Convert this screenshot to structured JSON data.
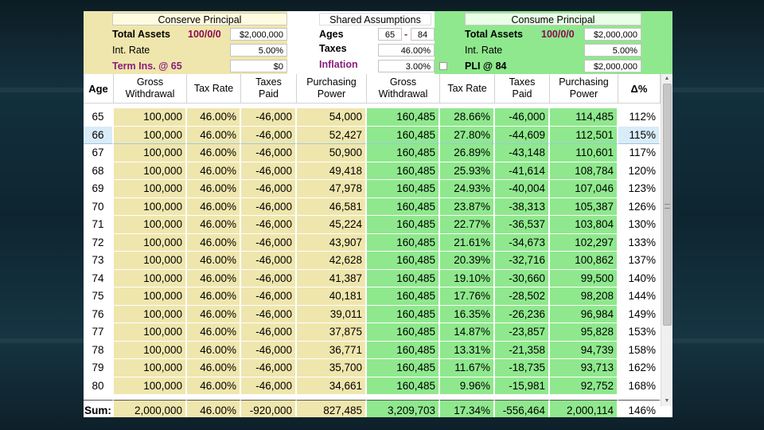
{
  "conserve": {
    "title": "Conserve Principal",
    "total_assets_label": "Total Assets",
    "alloc": "100/0/0",
    "total_assets": "$2,000,000",
    "int_rate_label": "Int. Rate",
    "int_rate": "5.00%",
    "term_ins_label": "Term Ins. @ 65",
    "term_ins": "$0"
  },
  "shared": {
    "title": "Shared Assumptions",
    "ages_label": "Ages",
    "age_from": "65",
    "age_dash": "-",
    "age_to": "84",
    "taxes_label": "Taxes",
    "taxes": "46.00%",
    "inflation_label": "Inflation",
    "inflation": "3.00%"
  },
  "consume": {
    "title": "Consume Principal",
    "total_assets_label": "Total Assets",
    "alloc": "100/0/0",
    "total_assets": "$2,000,000",
    "int_rate_label": "Int. Rate",
    "int_rate": "5.00%",
    "pli_label": "PLI @ 84",
    "pli": "$2,000,000"
  },
  "table": {
    "headers": {
      "age": "Age",
      "gross1": "Gross",
      "gross2": "Withdrawal",
      "tax": "Tax Rate",
      "taxes1": "Taxes",
      "taxes2": "Paid",
      "pp1": "Purchasing",
      "pp2": "Power",
      "delta": "Δ%"
    },
    "rows": [
      {
        "age": "65",
        "cg": "100,000",
        "ct": "46.00%",
        "cp": "-46,000",
        "cpp": "54,000",
        "sg": "160,485",
        "st": "28.66%",
        "sp": "-46,000",
        "spp": "114,485",
        "d": "112%"
      },
      {
        "age": "66",
        "cg": "100,000",
        "ct": "46.00%",
        "cp": "-46,000",
        "cpp": "52,427",
        "sg": "160,485",
        "st": "27.80%",
        "sp": "-44,609",
        "spp": "112,501",
        "d": "115%"
      },
      {
        "age": "67",
        "cg": "100,000",
        "ct": "46.00%",
        "cp": "-46,000",
        "cpp": "50,900",
        "sg": "160,485",
        "st": "26.89%",
        "sp": "-43,148",
        "spp": "110,601",
        "d": "117%"
      },
      {
        "age": "68",
        "cg": "100,000",
        "ct": "46.00%",
        "cp": "-46,000",
        "cpp": "49,418",
        "sg": "160,485",
        "st": "25.93%",
        "sp": "-41,614",
        "spp": "108,784",
        "d": "120%"
      },
      {
        "age": "69",
        "cg": "100,000",
        "ct": "46.00%",
        "cp": "-46,000",
        "cpp": "47,978",
        "sg": "160,485",
        "st": "24.93%",
        "sp": "-40,004",
        "spp": "107,046",
        "d": "123%"
      },
      {
        "age": "70",
        "cg": "100,000",
        "ct": "46.00%",
        "cp": "-46,000",
        "cpp": "46,581",
        "sg": "160,485",
        "st": "23.87%",
        "sp": "-38,313",
        "spp": "105,387",
        "d": "126%"
      },
      {
        "age": "71",
        "cg": "100,000",
        "ct": "46.00%",
        "cp": "-46,000",
        "cpp": "45,224",
        "sg": "160,485",
        "st": "22.77%",
        "sp": "-36,537",
        "spp": "103,804",
        "d": "130%"
      },
      {
        "age": "72",
        "cg": "100,000",
        "ct": "46.00%",
        "cp": "-46,000",
        "cpp": "43,907",
        "sg": "160,485",
        "st": "21.61%",
        "sp": "-34,673",
        "spp": "102,297",
        "d": "133%"
      },
      {
        "age": "73",
        "cg": "100,000",
        "ct": "46.00%",
        "cp": "-46,000",
        "cpp": "42,628",
        "sg": "160,485",
        "st": "20.39%",
        "sp": "-32,716",
        "spp": "100,862",
        "d": "137%"
      },
      {
        "age": "74",
        "cg": "100,000",
        "ct": "46.00%",
        "cp": "-46,000",
        "cpp": "41,387",
        "sg": "160,485",
        "st": "19.10%",
        "sp": "-30,660",
        "spp": "99,500",
        "d": "140%"
      },
      {
        "age": "75",
        "cg": "100,000",
        "ct": "46.00%",
        "cp": "-46,000",
        "cpp": "40,181",
        "sg": "160,485",
        "st": "17.76%",
        "sp": "-28,502",
        "spp": "98,208",
        "d": "144%"
      },
      {
        "age": "76",
        "cg": "100,000",
        "ct": "46.00%",
        "cp": "-46,000",
        "cpp": "39,011",
        "sg": "160,485",
        "st": "16.35%",
        "sp": "-26,236",
        "spp": "96,984",
        "d": "149%"
      },
      {
        "age": "77",
        "cg": "100,000",
        "ct": "46.00%",
        "cp": "-46,000",
        "cpp": "37,875",
        "sg": "160,485",
        "st": "14.87%",
        "sp": "-23,857",
        "spp": "95,828",
        "d": "153%"
      },
      {
        "age": "78",
        "cg": "100,000",
        "ct": "46.00%",
        "cp": "-46,000",
        "cpp": "36,771",
        "sg": "160,485",
        "st": "13.31%",
        "sp": "-21,358",
        "spp": "94,739",
        "d": "158%"
      },
      {
        "age": "79",
        "cg": "100,000",
        "ct": "46.00%",
        "cp": "-46,000",
        "cpp": "35,700",
        "sg": "160,485",
        "st": "11.67%",
        "sp": "-18,735",
        "spp": "93,713",
        "d": "162%"
      },
      {
        "age": "80",
        "cg": "100,000",
        "ct": "46.00%",
        "cp": "-46,000",
        "cpp": "34,661",
        "sg": "160,485",
        "st": "9.96%",
        "sp": "-15,981",
        "spp": "92,752",
        "d": "168%"
      }
    ],
    "sum": {
      "label": "Sum:",
      "cg": "2,000,000",
      "ct": "46.00%",
      "cp": "-920,000",
      "cpp": "827,485",
      "sg": "3,209,703",
      "st": "17.34%",
      "sp": "-556,464",
      "spp": "2,000,114",
      "d": "146%"
    }
  }
}
